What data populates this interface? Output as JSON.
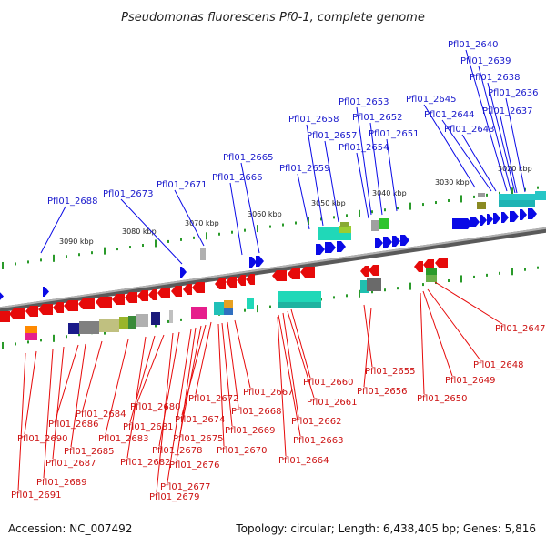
{
  "title": "Pseudomonas fluorescens Pf0-1, complete genome",
  "footer": {
    "accession": "Accession: NC_007492",
    "summary": "Topology: circular; Length: 6,438,405 bp; Genes: 5,816"
  },
  "scale_labels": [
    "3020 kbp",
    "3030 kbp",
    "3040 kbp",
    "3050 kbp",
    "3060 kbp",
    "3070 kbp",
    "3080 kbp",
    "3090 kbp"
  ],
  "upper_genes": [
    "Pfl01_2640",
    "Pfl01_2639",
    "Pfl01_2638",
    "Pfl01_2636",
    "Pfl01_2637",
    "Pfl01_2645",
    "Pfl01_2644",
    "Pfl01_2643",
    "Pfl01_2653",
    "Pfl01_2652",
    "Pfl01_2651",
    "Pfl01_2658",
    "Pfl01_2657",
    "Pfl01_2654",
    "Pfl01_2659",
    "Pfl01_2665",
    "Pfl01_2666",
    "Pfl01_2671",
    "Pfl01_2673",
    "Pfl01_2688"
  ],
  "lower_genes": [
    "Pfl01_2647",
    "Pfl01_2648",
    "Pfl01_2655",
    "Pfl01_2649",
    "Pfl01_2656",
    "Pfl01_2650",
    "Pfl01_2660",
    "Pfl01_2661",
    "Pfl01_2662",
    "Pfl01_2663",
    "Pfl01_2664",
    "Pfl01_2667",
    "Pfl01_2668",
    "Pfl01_2669",
    "Pfl01_2670",
    "Pfl01_2672",
    "Pfl01_2674",
    "Pfl01_2675",
    "Pfl01_2676",
    "Pfl01_2677",
    "Pfl01_2678",
    "Pfl01_2679",
    "Pfl01_2680",
    "Pfl01_2681",
    "Pfl01_2682",
    "Pfl01_2683",
    "Pfl01_2684",
    "Pfl01_2685",
    "Pfl01_2686",
    "Pfl01_2687",
    "Pfl01_2689",
    "Pfl01_2690",
    "Pfl01_2691"
  ],
  "colors": {
    "forward": "#0a0ae6",
    "reverse": "#e60a0a",
    "backbone": "#7a7a7a",
    "tick": "#2a9a2a"
  }
}
